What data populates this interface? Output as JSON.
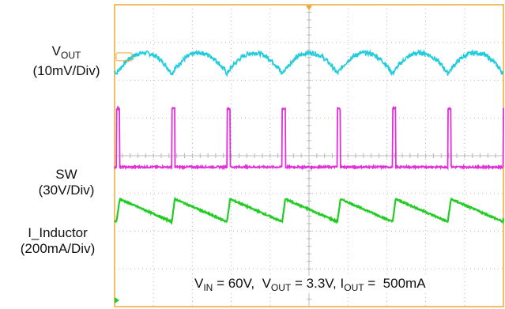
{
  "chart_data": {
    "type": "line",
    "title": "",
    "colors": {
      "frame": "#f0a830",
      "grid": "#b8b8b8",
      "vout": "#22ccdd",
      "sw": "#e030d8",
      "inductor": "#22cc22"
    },
    "labels": {
      "vout_main": "V",
      "vout_sub": "OUT",
      "vout_scale": "(10mV/Div)",
      "sw_main": "SW",
      "sw_scale": "(30V/Div)",
      "inductor_main": "I_Inductor",
      "inductor_scale": "(200mA/Div)"
    },
    "conditions": {
      "vin_main": "V",
      "vin_sub": "IN",
      "vin_value": " = 60V,  ",
      "vout_main": "V",
      "vout_sub": "OUT",
      "vout_value": " = 3.3V, ",
      "iout_main": "I",
      "iout_sub": "OUT",
      "iout_value": " =  500mA"
    },
    "grid": {
      "divisions_x": 10,
      "divisions_y": 8
    },
    "switching": {
      "period_div": 1.42,
      "first_pulse_div": 0.05,
      "pulse_width_div": 0.08
    },
    "series": [
      {
        "name": "VOUT",
        "scale": "10mV/Div",
        "shape": "ripple",
        "level_div": 6.45,
        "pp_div": 0.55
      },
      {
        "name": "SW",
        "scale": "30V/Div",
        "shape": "pulse",
        "low_div": 3.7,
        "high_div": 5.25
      },
      {
        "name": "I_Inductor",
        "scale": "200mA/Div",
        "shape": "sawtooth",
        "valley_div": 2.25,
        "peak_div": 2.85
      }
    ]
  }
}
